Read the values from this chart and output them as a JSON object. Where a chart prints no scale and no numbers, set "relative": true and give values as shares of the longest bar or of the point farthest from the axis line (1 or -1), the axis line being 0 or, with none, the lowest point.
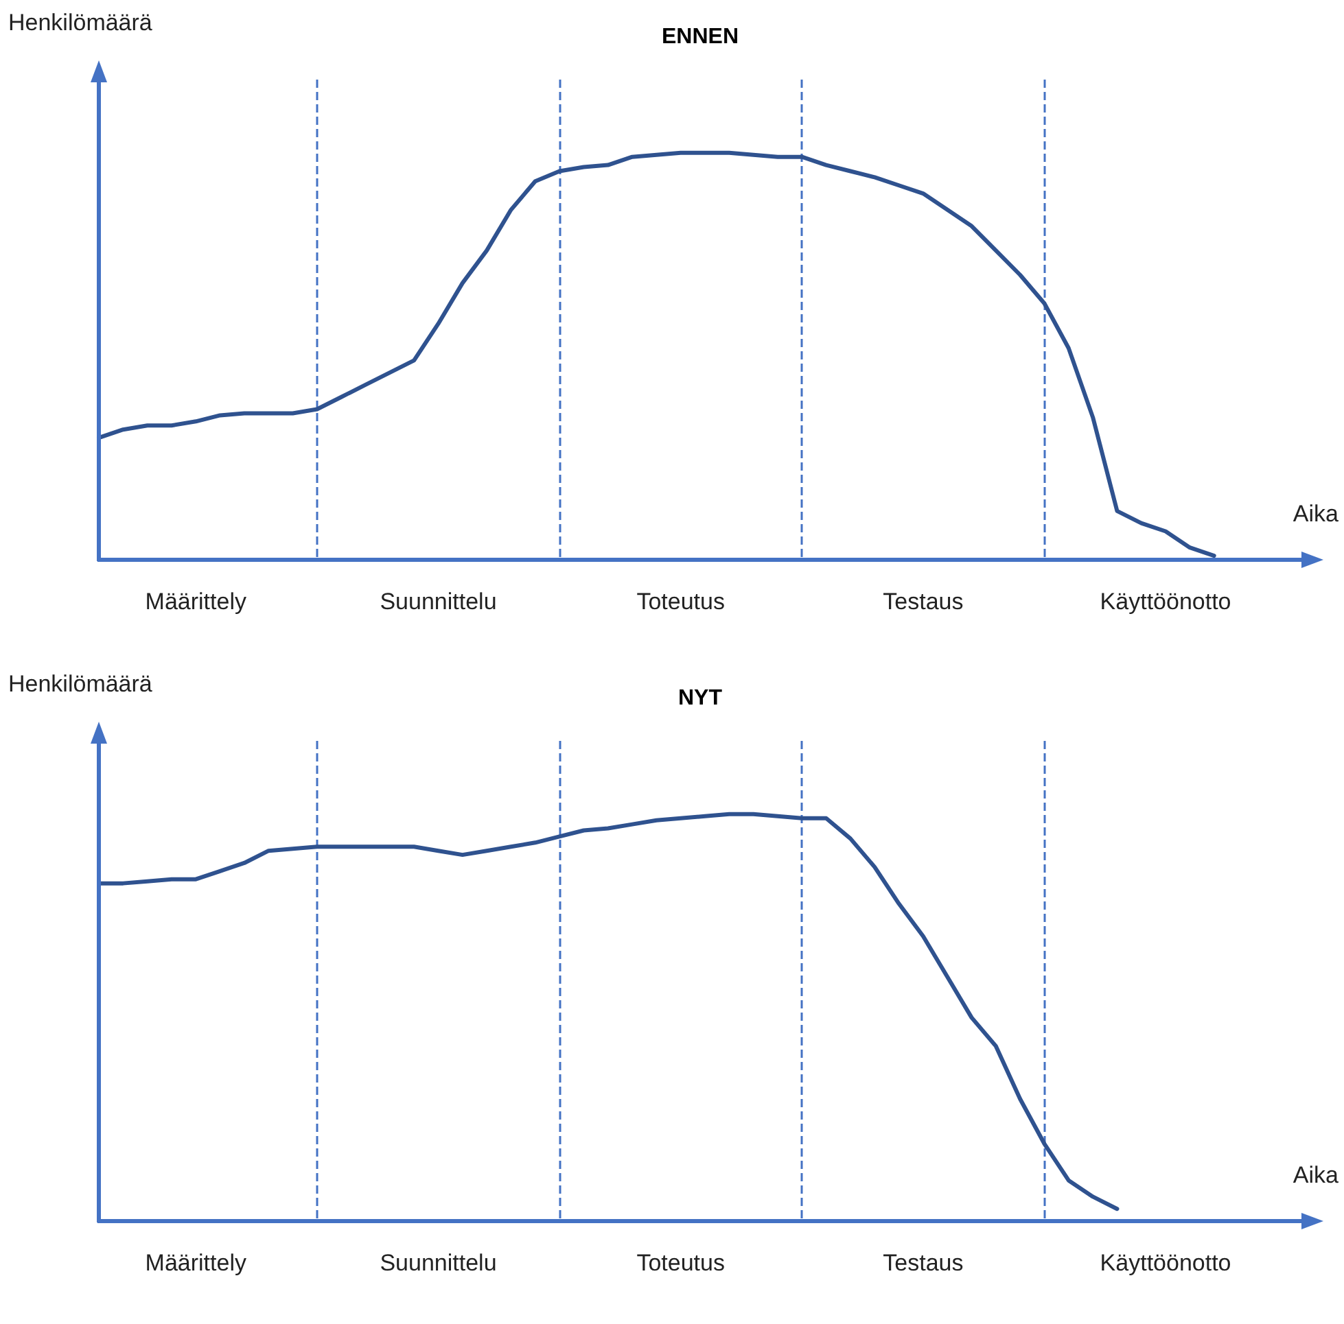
{
  "chart_data": [
    {
      "type": "line",
      "title": "ENNEN",
      "xlabel": "Aika",
      "ylabel": "Henkilömäärä",
      "relative": true,
      "categories": [
        null,
        null,
        null,
        null,
        "Määrittely",
        null,
        null,
        null,
        null,
        null,
        null,
        null,
        null,
        null,
        "Suunnittelu",
        null,
        null,
        null,
        null,
        null,
        null,
        null,
        null,
        null,
        "Toteutus",
        null,
        null,
        null,
        null,
        null,
        null,
        null,
        null,
        null,
        "Testaus",
        null,
        null,
        null,
        null,
        null,
        null,
        null,
        null,
        null,
        "Käyttöönotto",
        null,
        null,
        null,
        null,
        null,
        null
      ],
      "grid": "x",
      "marker": "none",
      "line_style": "solid",
      "series": [
        {
          "color": "#2f528f",
          "values": [
            0.3,
            0.32,
            0.33,
            0.33,
            0.34,
            0.355,
            0.36,
            0.36,
            0.36,
            0.37,
            0.4,
            0.43,
            0.46,
            0.49,
            0.58,
            0.68,
            0.76,
            0.86,
            0.93,
            0.955,
            0.965,
            0.97,
            0.99,
            0.995,
            1,
            1,
            1,
            0.995,
            0.99,
            0.99,
            0.97,
            0.955,
            0.94,
            0.92,
            0.9,
            0.86,
            0.82,
            0.76,
            0.7,
            0.63,
            0.52,
            0.35,
            0.12,
            0.09,
            0.07,
            0.03,
            0.01,
            null,
            null,
            null,
            null
          ]
        }
      ]
    },
    {
      "type": "line",
      "title": "NYT",
      "xlabel": "Aika",
      "ylabel": "Henkilömäärä",
      "relative": true,
      "categories": [
        null,
        null,
        null,
        null,
        "Määrittely",
        null,
        null,
        null,
        null,
        null,
        null,
        null,
        null,
        null,
        "Suunnittelu",
        null,
        null,
        null,
        null,
        null,
        null,
        null,
        null,
        null,
        "Toteutus",
        null,
        null,
        null,
        null,
        null,
        null,
        null,
        null,
        null,
        "Testaus",
        null,
        null,
        null,
        null,
        null,
        null,
        null,
        null,
        null,
        "Käyttöönotto",
        null,
        null,
        null,
        null,
        null,
        null
      ],
      "grid": "x",
      "marker": "none",
      "line_style": "solid",
      "series": [
        {
          "color": "#2f528f",
          "values": [
            0.83,
            0.83,
            0.835,
            0.84,
            0.84,
            0.86,
            0.88,
            0.91,
            0.915,
            0.92,
            0.92,
            0.92,
            0.92,
            0.92,
            0.91,
            0.9,
            0.91,
            0.92,
            0.93,
            0.945,
            0.96,
            0.965,
            0.975,
            0.985,
            0.99,
            0.995,
            1,
            1,
            0.995,
            0.99,
            0.99,
            0.94,
            0.87,
            0.78,
            0.7,
            0.6,
            0.5,
            0.43,
            0.3,
            0.19,
            0.1,
            0.06,
            0.03,
            null,
            null,
            null,
            null,
            null,
            null,
            null,
            null
          ]
        }
      ]
    }
  ]
}
